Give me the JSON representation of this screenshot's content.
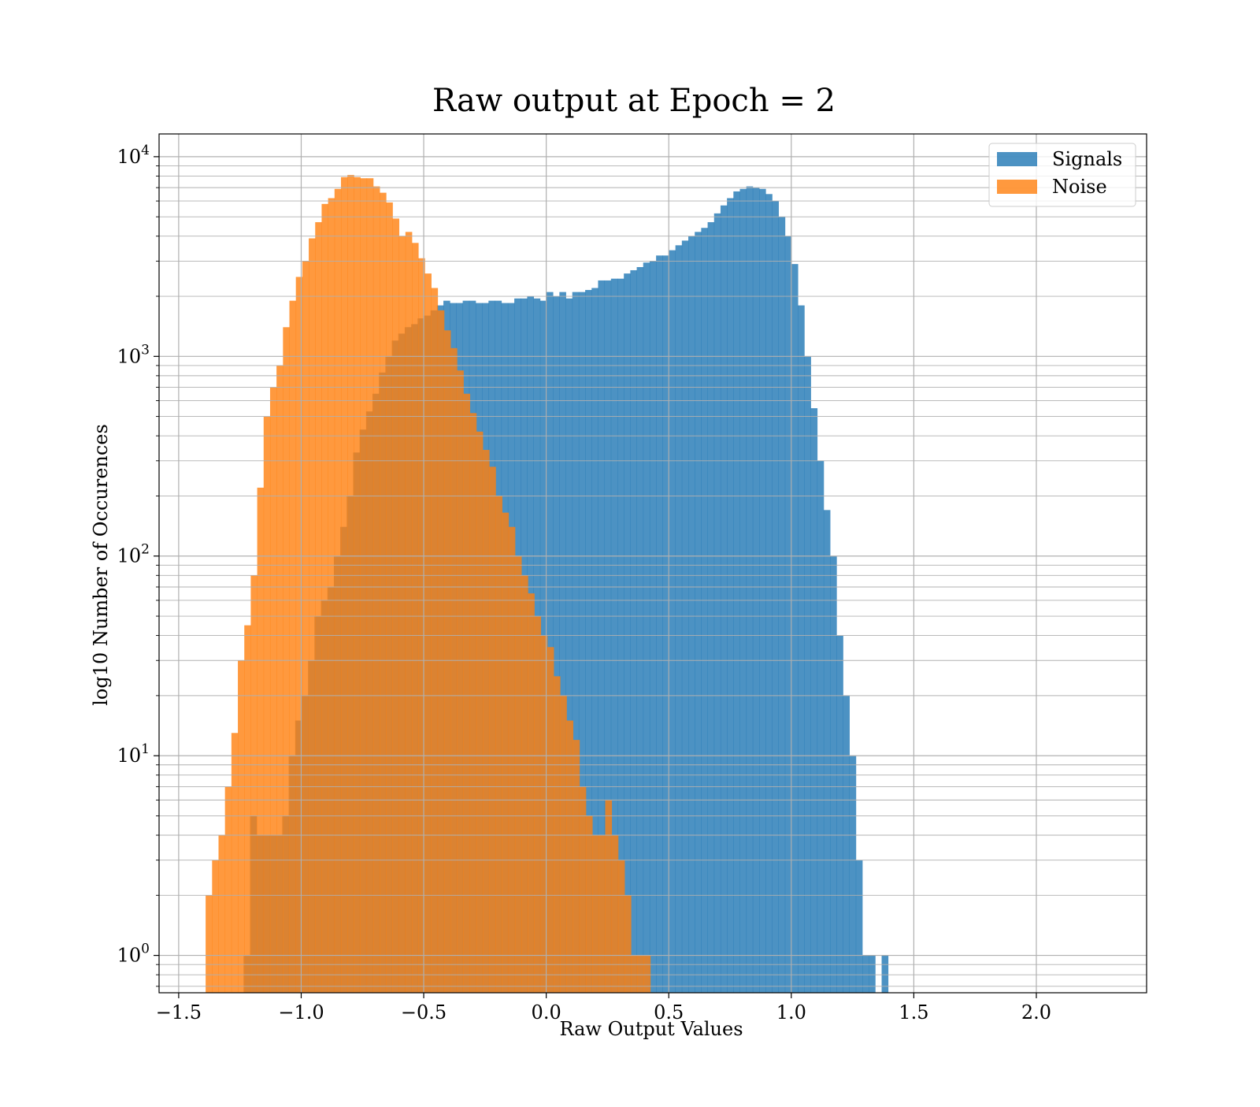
{
  "chart_data": {
    "type": "bar",
    "title": "Raw output at Epoch = 2",
    "xlabel": "Raw Output Values",
    "ylabel": "log10 Number of Occurences",
    "yscale": "log",
    "grid": true,
    "legend_position": "top-right",
    "xlim": [
      -1.58,
      2.45
    ],
    "ylim": [
      0.65,
      13000
    ],
    "x_ticks": [
      -1.5,
      -1.0,
      -0.5,
      0.0,
      0.5,
      1.0,
      1.5,
      2.0
    ],
    "x_tick_labels": [
      "−1.5",
      "−1.0",
      "−0.5",
      "0.0",
      "0.5",
      "1.0",
      "1.5",
      "2.0"
    ],
    "y_ticks": [
      1,
      10,
      100,
      1000,
      10000
    ],
    "y_tick_labels": [
      {
        "base": "10",
        "exp": "0"
      },
      {
        "base": "10",
        "exp": "1"
      },
      {
        "base": "10",
        "exp": "2"
      },
      {
        "base": "10",
        "exp": "3"
      },
      {
        "base": "10",
        "exp": "4"
      }
    ],
    "series": [
      {
        "name": "Signals",
        "color": "#1f77b4",
        "opacity": 0.8,
        "bin_start": -1.235,
        "bin_width": 0.0263,
        "values": [
          1,
          5,
          4,
          4,
          4,
          4,
          5,
          10,
          15,
          20,
          30,
          50,
          60,
          70,
          100,
          140,
          200,
          330,
          430,
          530,
          650,
          830,
          1000,
          1200,
          1300,
          1400,
          1450,
          1550,
          1600,
          1700,
          1800,
          1900,
          1850,
          1850,
          1900,
          1900,
          1850,
          1850,
          1900,
          1900,
          1850,
          1850,
          1950,
          1950,
          2000,
          1950,
          1900,
          2100,
          2000,
          2100,
          1950,
          2100,
          2100,
          2150,
          2200,
          2400,
          2400,
          2450,
          2450,
          2600,
          2700,
          2800,
          2950,
          3000,
          3200,
          3200,
          3400,
          3600,
          3800,
          4000,
          4200,
          4400,
          4700,
          5200,
          5700,
          6200,
          6700,
          6900,
          7100,
          7000,
          6900,
          6500,
          6000,
          5000,
          4000,
          2900,
          1800,
          1000,
          550,
          300,
          170,
          100,
          40,
          20,
          10,
          3,
          1,
          1,
          0,
          1
        ]
      },
      {
        "name": "Noise",
        "color": "#ff7f0e",
        "opacity": 0.8,
        "bin_start": -1.39,
        "bin_width": 0.0263,
        "values": [
          2,
          3,
          4,
          7,
          13,
          30,
          45,
          80,
          220,
          500,
          700,
          900,
          1400,
          1900,
          2500,
          3000,
          3900,
          4700,
          5800,
          6200,
          6900,
          7900,
          8100,
          7900,
          7800,
          7800,
          7100,
          6600,
          5900,
          4900,
          4000,
          4200,
          3700,
          3100,
          2600,
          2200,
          1700,
          1350,
          1100,
          850,
          650,
          520,
          420,
          340,
          280,
          200,
          165,
          140,
          100,
          80,
          65,
          50,
          40,
          35,
          25,
          20,
          15,
          12,
          7,
          5,
          4,
          4,
          6,
          4,
          3,
          2,
          1,
          1,
          1
        ]
      }
    ]
  }
}
